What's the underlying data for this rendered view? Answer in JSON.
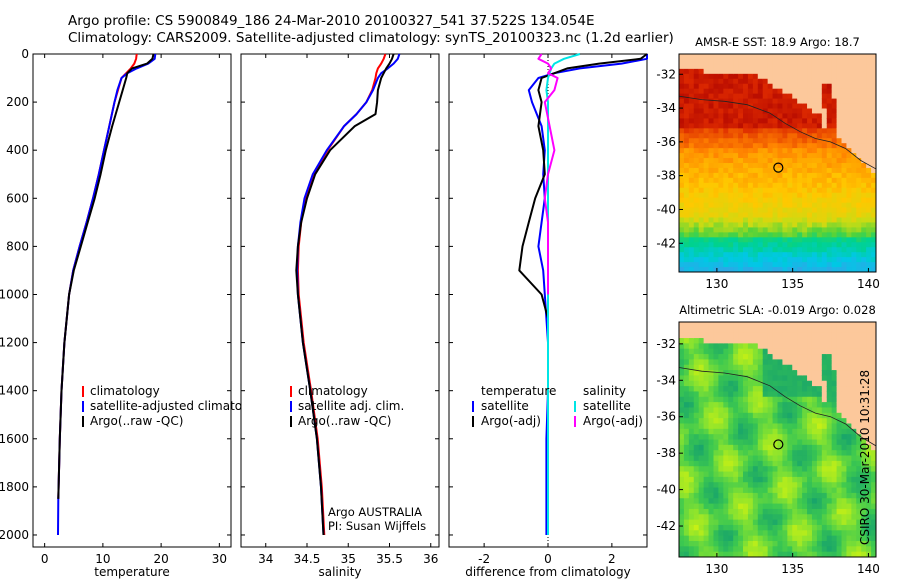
{
  "titles": {
    "line1": "Argo profile: CS 5900849_186 24-Mar-2010 20100327_541 37.522S 134.054E",
    "line2": "Climatology: CARS2009. Satellite-adjusted climatology: synTS_20100323.nc (1.2d earlier)"
  },
  "stamp": "CSIRO 30-Mar-2010 10:31:28",
  "colors": {
    "climatology": "#ff0000",
    "satellite": "#0000ff",
    "argo": "#000000",
    "sal_satellite": "#00e5e5",
    "sal_argo": "#ff00ff"
  },
  "chart_data": [
    {
      "id": "temperature",
      "type": "line",
      "xlabel": "temperature",
      "ylabel": "",
      "xlim": [
        -2,
        32
      ],
      "ylim": [
        2050,
        0
      ],
      "xticks": [
        0,
        10,
        20,
        30
      ],
      "yticks": [
        0,
        200,
        400,
        600,
        800,
        1000,
        1200,
        1400,
        1600,
        1800,
        2000
      ],
      "depth": [
        0,
        20,
        40,
        60,
        80,
        100,
        150,
        200,
        300,
        400,
        500,
        600,
        700,
        800,
        900,
        1000,
        1200,
        1400,
        1600,
        1800,
        1850,
        2000
      ],
      "series": [
        {
          "name": "climatology",
          "color": "#ff0000",
          "values": [
            15.8,
            15.7,
            15.4,
            14.8,
            14.0,
            13.2,
            12.6,
            12.0,
            11.1,
            10.2,
            9.3,
            8.3,
            7.2,
            6.0,
            4.9,
            4.2,
            3.4,
            2.9,
            2.6,
            2.4,
            2.35,
            null
          ]
        },
        {
          "name": "satellite-adjusted climatology",
          "color": "#0000ff",
          "values": [
            19.0,
            18.9,
            17.8,
            15.8,
            14.2,
            13.2,
            12.5,
            12.0,
            11.1,
            10.2,
            9.3,
            8.3,
            7.2,
            6.0,
            4.9,
            4.2,
            3.4,
            2.9,
            2.6,
            2.4,
            2.35,
            2.3
          ]
        },
        {
          "name": "Argo(..raw -QC)",
          "color": "#000000",
          "values": [
            18.7,
            18.5,
            17.6,
            15.0,
            14.2,
            14.0,
            13.4,
            12.8,
            11.6,
            10.5,
            9.6,
            8.6,
            7.4,
            6.2,
            5.0,
            4.2,
            3.4,
            2.9,
            2.6,
            2.4,
            2.35,
            null
          ]
        }
      ],
      "legend": {
        "placement": "lower-right",
        "entries": [
          "climatology",
          "satellite-adjusted climatology",
          "Argo(..raw -QC)"
        ]
      }
    },
    {
      "id": "salinity",
      "type": "line",
      "xlabel": "salinity",
      "ylabel": "",
      "xlim": [
        33.7,
        36.1
      ],
      "ylim": [
        2050,
        0
      ],
      "xticks": [
        34,
        34.5,
        35,
        35.5,
        36
      ],
      "xticklabels": [
        "34",
        "34.5",
        "35",
        "35.5",
        "36"
      ],
      "depth": [
        0,
        20,
        40,
        60,
        80,
        100,
        150,
        200,
        250,
        300,
        400,
        500,
        600,
        700,
        800,
        900,
        1000,
        1200,
        1400,
        1600,
        1800,
        2000
      ],
      "series": [
        {
          "name": "climatology",
          "color": "#ff0000",
          "values": [
            35.45,
            35.43,
            35.4,
            35.36,
            35.34,
            35.33,
            35.29,
            35.22,
            35.1,
            34.95,
            34.75,
            34.58,
            34.48,
            34.43,
            34.4,
            34.39,
            34.4,
            34.46,
            34.55,
            34.63,
            34.68,
            34.71
          ]
        },
        {
          "name": "satellite adj. clim.",
          "color": "#0000ff",
          "values": [
            35.62,
            35.6,
            35.55,
            35.48,
            35.4,
            35.36,
            35.3,
            35.22,
            35.1,
            34.95,
            34.74,
            34.57,
            34.47,
            34.42,
            34.39,
            34.38,
            34.39,
            34.45,
            34.54,
            34.62,
            34.67,
            34.7
          ]
        },
        {
          "name": "Argo(..raw -QC)",
          "color": "#000000",
          "values": [
            35.55,
            35.53,
            35.5,
            35.46,
            35.43,
            35.4,
            35.36,
            35.35,
            35.33,
            35.08,
            34.78,
            34.6,
            34.5,
            34.43,
            34.39,
            34.37,
            34.39,
            34.45,
            34.54,
            34.62,
            34.67,
            34.7
          ]
        }
      ],
      "legend": {
        "placement": "lower-right",
        "entries": [
          "climatology",
          "satellite adj. clim.",
          "Argo(..raw -QC)"
        ]
      },
      "annotation": [
        "Argo AUSTRALIA",
        "PI: Susan Wijffels"
      ]
    },
    {
      "id": "difference",
      "type": "line",
      "xlabel": "difference from climatology",
      "ylabel": "",
      "xlim": [
        -3.1,
        3.1
      ],
      "ylim": [
        2050,
        0
      ],
      "xticks": [
        -2,
        0,
        2
      ],
      "depth": [
        0,
        20,
        40,
        60,
        80,
        100,
        150,
        200,
        300,
        400,
        500,
        600,
        700,
        800,
        900,
        1000,
        1100,
        1200,
        1400,
        1600,
        1800,
        2000
      ],
      "series": [
        {
          "name": "temperature satellite",
          "color": "#0000ff",
          "values": [
            3.2,
            3.1,
            2.3,
            1.0,
            0.2,
            -0.3,
            -0.6,
            -0.5,
            -0.2,
            -0.1,
            -0.15,
            -0.1,
            -0.2,
            -0.3,
            -0.15,
            -0.1,
            -0.05,
            0.0,
            0.0,
            -0.05,
            -0.05,
            -0.05
          ]
        },
        {
          "name": "temperature Argo(-adj)",
          "color": "#000000",
          "values": [
            3.1,
            2.9,
            1.6,
            0.6,
            0.2,
            -0.2,
            -0.3,
            -0.2,
            -0.3,
            -0.15,
            -0.1,
            -0.4,
            -0.6,
            -0.8,
            -0.9,
            -0.2,
            0.0,
            0.0,
            0.0,
            null,
            null,
            null
          ]
        },
        {
          "name": "salinity satellite",
          "color": "#00e5e5",
          "values": [
            1.0,
            0.5,
            0.2,
            0.1,
            0.05,
            0.0,
            -0.05,
            0.0,
            0.0,
            0.0,
            0.0,
            0.0,
            0.0,
            0.0,
            0.0,
            0.0,
            0.0,
            0.0,
            0.0,
            0.0,
            0.0,
            0.0
          ]
        },
        {
          "name": "salinity Argo(-adj)",
          "color": "#ff00ff",
          "values": [
            -0.2,
            -0.3,
            0.0,
            0.1,
            0.0,
            0.3,
            0.2,
            -0.1,
            0.05,
            0.2,
            0.0,
            -0.1,
            0.0,
            0.0,
            0.0,
            0.0,
            null,
            null,
            null,
            null,
            null,
            null
          ]
        }
      ],
      "zero_line": true,
      "legend": {
        "placement": "lower-right",
        "groups": [
          {
            "header": "temperature",
            "entries": [
              "satellite",
              "Argo(-adj)"
            ]
          },
          {
            "header": "salinity",
            "entries": [
              "satellite",
              "Argo(-adj)"
            ]
          }
        ]
      }
    },
    {
      "id": "sst_map",
      "type": "heatmap",
      "title": "AMSR-E SST: 18.9 Argo: 18.7",
      "xlim": [
        127.5,
        140.5
      ],
      "ylim": [
        -43.7,
        -30.8
      ],
      "xticks": [
        130,
        135,
        140
      ],
      "yticks": [
        -32,
        -34,
        -36,
        -38,
        -40,
        -42
      ],
      "profile_marker": {
        "lon": 134.054,
        "lat": -37.522
      }
    },
    {
      "id": "sla_map",
      "type": "heatmap",
      "title": "Altimetric SLA: -0.019 Argo: 0.028",
      "xlim": [
        127.5,
        140.5
      ],
      "ylim": [
        -43.7,
        -30.8
      ],
      "xticks": [
        130,
        135,
        140
      ],
      "yticks": [
        -32,
        -34,
        -36,
        -38,
        -40,
        -42
      ],
      "profile_marker": {
        "lon": 134.054,
        "lat": -37.522
      }
    }
  ]
}
